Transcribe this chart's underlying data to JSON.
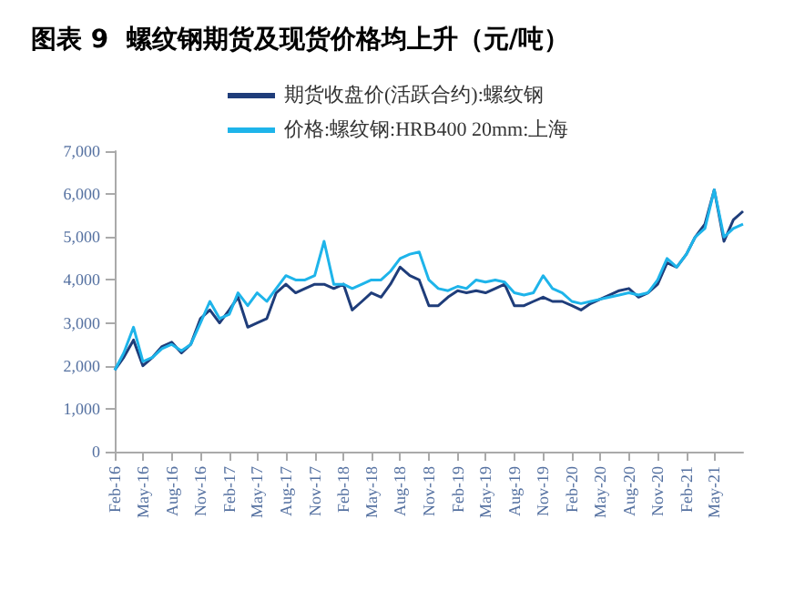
{
  "chart_data": {
    "type": "line",
    "title": "图表 9  螺纹钢期货及现货价格均上升（元/吨）",
    "x": [
      "2016-02",
      "2016-03",
      "2016-04",
      "2016-05",
      "2016-06",
      "2016-07",
      "2016-08",
      "2016-09",
      "2016-10",
      "2016-11",
      "2016-12",
      "2017-01",
      "2017-02",
      "2017-03",
      "2017-04",
      "2017-05",
      "2017-06",
      "2017-07",
      "2017-08",
      "2017-09",
      "2017-10",
      "2017-11",
      "2017-12",
      "2018-01",
      "2018-02",
      "2018-03",
      "2018-04",
      "2018-05",
      "2018-06",
      "2018-07",
      "2018-08",
      "2018-09",
      "2018-10",
      "2018-11",
      "2018-12",
      "2019-01",
      "2019-02",
      "2019-03",
      "2019-04",
      "2019-05",
      "2019-06",
      "2019-07",
      "2019-08",
      "2019-09",
      "2019-10",
      "2019-11",
      "2019-12",
      "2020-01",
      "2020-02",
      "2020-03",
      "2020-04",
      "2020-05",
      "2020-06",
      "2020-07",
      "2020-08",
      "2020-09",
      "2020-10",
      "2020-11",
      "2020-12",
      "2021-01",
      "2021-02",
      "2021-03",
      "2021-04",
      "2021-05",
      "2021-06",
      "2021-07",
      "2021-08"
    ],
    "series": [
      {
        "name": "期货收盘价(活跃合约):螺纹钢",
        "color": "#1f3d7a",
        "values": [
          1900,
          2200,
          2600,
          2000,
          2200,
          2450,
          2550,
          2300,
          2500,
          3100,
          3300,
          3000,
          3300,
          3600,
          2900,
          3000,
          3100,
          3700,
          3900,
          3700,
          3800,
          3900,
          3900,
          3800,
          3900,
          3300,
          3500,
          3700,
          3600,
          3900,
          4300,
          4100,
          4000,
          3400,
          3400,
          3600,
          3750,
          3700,
          3750,
          3700,
          3800,
          3900,
          3400,
          3400,
          3500,
          3600,
          3500,
          3500,
          3400,
          3300,
          3450,
          3550,
          3650,
          3750,
          3800,
          3600,
          3700,
          3900,
          4400,
          4300,
          4600,
          5000,
          5300,
          6100,
          4900,
          5400,
          5600
        ]
      },
      {
        "name": "价格:螺纹钢:HRB400 20mm:上海",
        "color": "#1eb4ea",
        "values": [
          1900,
          2300,
          2900,
          2100,
          2200,
          2400,
          2500,
          2350,
          2500,
          3000,
          3500,
          3100,
          3200,
          3700,
          3400,
          3700,
          3500,
          3800,
          4100,
          4000,
          4000,
          4100,
          4900,
          3900,
          3900,
          3800,
          3900,
          4000,
          4000,
          4200,
          4500,
          4600,
          4650,
          4000,
          3800,
          3750,
          3850,
          3800,
          4000,
          3950,
          4000,
          3950,
          3700,
          3650,
          3700,
          4100,
          3800,
          3700,
          3500,
          3450,
          3500,
          3550,
          3600,
          3650,
          3700,
          3650,
          3700,
          4000,
          4500,
          4300,
          4600,
          5000,
          5200,
          6100,
          5000,
          5200,
          5300
        ]
      }
    ],
    "xlim": [
      "2016-02",
      "2021-08"
    ],
    "xticks": [
      {
        "value": "2016-02",
        "label": "Feb-16"
      },
      {
        "value": "2016-05",
        "label": "May-16"
      },
      {
        "value": "2016-08",
        "label": "Aug-16"
      },
      {
        "value": "2016-11",
        "label": "Nov-16"
      },
      {
        "value": "2017-02",
        "label": "Feb-17"
      },
      {
        "value": "2017-05",
        "label": "May-17"
      },
      {
        "value": "2017-08",
        "label": "Aug-17"
      },
      {
        "value": "2017-11",
        "label": "Nov-17"
      },
      {
        "value": "2018-02",
        "label": "Feb-18"
      },
      {
        "value": "2018-05",
        "label": "May-18"
      },
      {
        "value": "2018-08",
        "label": "Aug-18"
      },
      {
        "value": "2018-11",
        "label": "Nov-18"
      },
      {
        "value": "2019-02",
        "label": "Feb-19"
      },
      {
        "value": "2019-05",
        "label": "May-19"
      },
      {
        "value": "2019-08",
        "label": "Aug-19"
      },
      {
        "value": "2019-11",
        "label": "Nov-19"
      },
      {
        "value": "2020-02",
        "label": "Feb-20"
      },
      {
        "value": "2020-05",
        "label": "May-20"
      },
      {
        "value": "2020-08",
        "label": "Aug-20"
      },
      {
        "value": "2020-11",
        "label": "Nov-20"
      },
      {
        "value": "2021-02",
        "label": "Feb-21"
      },
      {
        "value": "2021-05",
        "label": "May-21"
      }
    ],
    "ylim": [
      0,
      7000
    ],
    "yticks": [
      0,
      {
        "value": 1000,
        "label": "1,000"
      },
      {
        "value": 2000,
        "label": "2,000"
      },
      {
        "value": 3000,
        "label": "3,000"
      },
      {
        "value": 4000,
        "label": "4,000"
      },
      {
        "value": 5000,
        "label": "5,000"
      },
      {
        "value": 6000,
        "label": "6,000"
      },
      {
        "value": 7000,
        "label": "7,000"
      }
    ],
    "grid": false,
    "legend": "top",
    "marker": "none",
    "line_style": "solid"
  }
}
